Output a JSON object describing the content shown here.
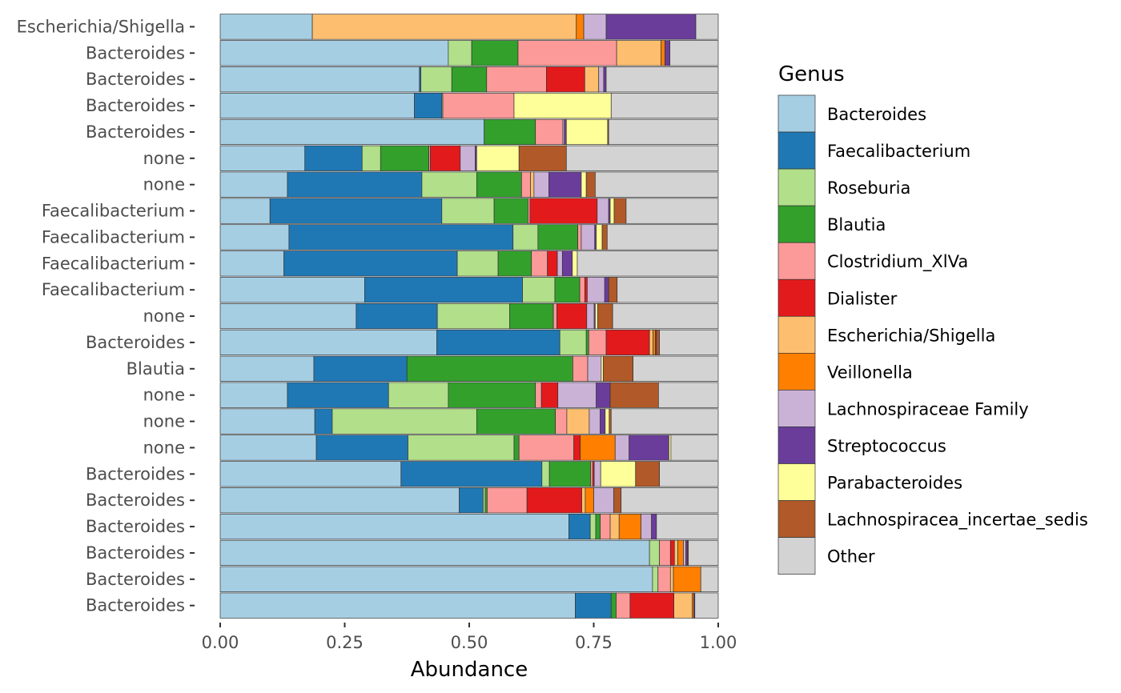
{
  "chart_data": {
    "type": "bar",
    "orientation": "horizontal",
    "stacked": true,
    "xlabel": "Abundance",
    "ylabel": "",
    "xlim": [
      0,
      1
    ],
    "xticks": [
      "0.00",
      "0.25",
      "0.50",
      "0.75",
      "1.00"
    ],
    "xtick_values": [
      0,
      0.25,
      0.5,
      0.75,
      1
    ],
    "grid": false,
    "legend_title": "Genus",
    "legend_position": "right",
    "genera": [
      {
        "name": "Bacteroides",
        "color": "#A6CEE3"
      },
      {
        "name": "Faecalibacterium",
        "color": "#1F78B4"
      },
      {
        "name": "Roseburia",
        "color": "#B2DF8A"
      },
      {
        "name": "Blautia",
        "color": "#33A02C"
      },
      {
        "name": "Clostridium_XlVa",
        "color": "#FB9A99"
      },
      {
        "name": "Dialister",
        "color": "#E31A1C"
      },
      {
        "name": "Escherichia/Shigella",
        "color": "#FDBF6F"
      },
      {
        "name": "Veillonella",
        "color": "#FF7F00"
      },
      {
        "name": "Lachnospiraceae Family",
        "color": "#CAB2D6"
      },
      {
        "name": "Streptococcus",
        "color": "#6A3D9A"
      },
      {
        "name": "Parabacteroides",
        "color": "#FFFF99"
      },
      {
        "name": "Lachnospiracea_incertae_sedis",
        "color": "#B15928"
      },
      {
        "name": "Other",
        "color": "#D3D3D3"
      }
    ],
    "rows": [
      {
        "label": "Escherichia/Shigella",
        "values": [
          0.185,
          0,
          0,
          0,
          0,
          0,
          0.53,
          0.015,
          0.045,
          0.18,
          0,
          0,
          0.045
        ]
      },
      {
        "label": "Bacteroides",
        "values": [
          0.458,
          0,
          0.047,
          0.093,
          0.198,
          0,
          0.089,
          0.008,
          0,
          0.01,
          0,
          0,
          0.097
        ]
      },
      {
        "label": "Bacteroides",
        "values": [
          0.4,
          0.003,
          0.062,
          0.07,
          0.12,
          0.077,
          0.028,
          0,
          0.01,
          0.005,
          0,
          0,
          0.225
        ]
      },
      {
        "label": "Bacteroides",
        "values": [
          0.39,
          0.055,
          0.002,
          0,
          0.143,
          0,
          0,
          0,
          0,
          0,
          0.195,
          0,
          0.215
        ]
      },
      {
        "label": "Bacteroides",
        "values": [
          0.53,
          0,
          0,
          0.103,
          0.055,
          0,
          0,
          0,
          0.003,
          0.004,
          0.083,
          0.002,
          0.22
        ]
      },
      {
        "label": "none",
        "values": [
          0.17,
          0.115,
          0.037,
          0.097,
          0.003,
          0.06,
          0,
          0,
          0.03,
          0.003,
          0.085,
          0.095,
          0.305
        ]
      },
      {
        "label": "none",
        "values": [
          0.135,
          0.27,
          0.11,
          0.09,
          0.018,
          0,
          0.007,
          0,
          0.03,
          0.065,
          0.01,
          0.018,
          0.247
        ]
      },
      {
        "label": "Faecalibacterium",
        "values": [
          0.1,
          0.345,
          0.105,
          0.068,
          0.004,
          0.135,
          0,
          0,
          0.023,
          0.003,
          0.008,
          0.024,
          0.185
        ]
      },
      {
        "label": "Faecalibacterium",
        "values": [
          0.138,
          0.45,
          0.05,
          0.08,
          0.007,
          0,
          0,
          0,
          0.027,
          0.003,
          0.012,
          0.01,
          0.223
        ]
      },
      {
        "label": "Faecalibacterium",
        "values": [
          0.128,
          0.348,
          0.082,
          0.067,
          0.032,
          0.02,
          0,
          0,
          0.01,
          0.02,
          0.01,
          0,
          0.283
        ]
      },
      {
        "label": "Faecalibacterium",
        "values": [
          0.29,
          0.317,
          0.065,
          0.05,
          0.01,
          0.005,
          0,
          0,
          0.035,
          0.008,
          0,
          0.017,
          0.203
        ]
      },
      {
        "label": "none",
        "values": [
          0.273,
          0.163,
          0.145,
          0.088,
          0.007,
          0.06,
          0,
          0,
          0.015,
          0.002,
          0.005,
          0.03,
          0.212
        ]
      },
      {
        "label": "Bacteroides",
        "values": [
          0.435,
          0.247,
          0.053,
          0.005,
          0.035,
          0.087,
          0.007,
          0.005,
          0,
          0.002,
          0,
          0.006,
          0.118
        ]
      },
      {
        "label": "Blautia",
        "values": [
          0.188,
          0.187,
          0,
          0.333,
          0.03,
          0,
          0,
          0,
          0.027,
          0,
          0.004,
          0.06,
          0.171
        ]
      },
      {
        "label": "none",
        "values": [
          0.135,
          0.203,
          0.12,
          0.175,
          0.012,
          0.033,
          0,
          0,
          0.077,
          0.028,
          0,
          0.097,
          0.12
        ]
      },
      {
        "label": "none",
        "values": [
          0.19,
          0.035,
          0.29,
          0.158,
          0.023,
          0,
          0.045,
          0,
          0.022,
          0.01,
          0.008,
          0.004,
          0.215
        ]
      },
      {
        "label": "none",
        "values": [
          0.193,
          0.184,
          0.213,
          0.01,
          0.11,
          0.013,
          0,
          0.07,
          0.028,
          0.08,
          0.004,
          0,
          0.095
        ]
      },
      {
        "label": "Bacteroides",
        "values": [
          0.363,
          0.283,
          0.015,
          0.083,
          0.004,
          0.003,
          0,
          0,
          0.013,
          0,
          0.07,
          0.048,
          0.118
        ]
      },
      {
        "label": "Bacteroides",
        "values": [
          0.48,
          0.048,
          0.004,
          0.004,
          0.08,
          0.11,
          0.007,
          0.017,
          0.04,
          0,
          0,
          0.015,
          0.195
        ]
      },
      {
        "label": "Bacteroides",
        "values": [
          0.7,
          0.043,
          0.011,
          0.009,
          0.02,
          0,
          0.018,
          0.044,
          0.021,
          0.01,
          0,
          0,
          0.124
        ]
      },
      {
        "label": "Bacteroides",
        "values": [
          0.862,
          0,
          0.02,
          0,
          0.022,
          0.008,
          0.007,
          0.011,
          0.005,
          0.003,
          0,
          0.002,
          0.06
        ]
      },
      {
        "label": "Bacteroides",
        "values": [
          0.868,
          0,
          0.011,
          0,
          0.025,
          0,
          0.006,
          0.055,
          0,
          0,
          0,
          0,
          0.035
        ]
      },
      {
        "label": "Bacteroides",
        "values": [
          0.713,
          0.072,
          0,
          0.01,
          0.028,
          0.088,
          0.037,
          0.003,
          0,
          0.002,
          0,
          0,
          0.047
        ]
      }
    ]
  }
}
